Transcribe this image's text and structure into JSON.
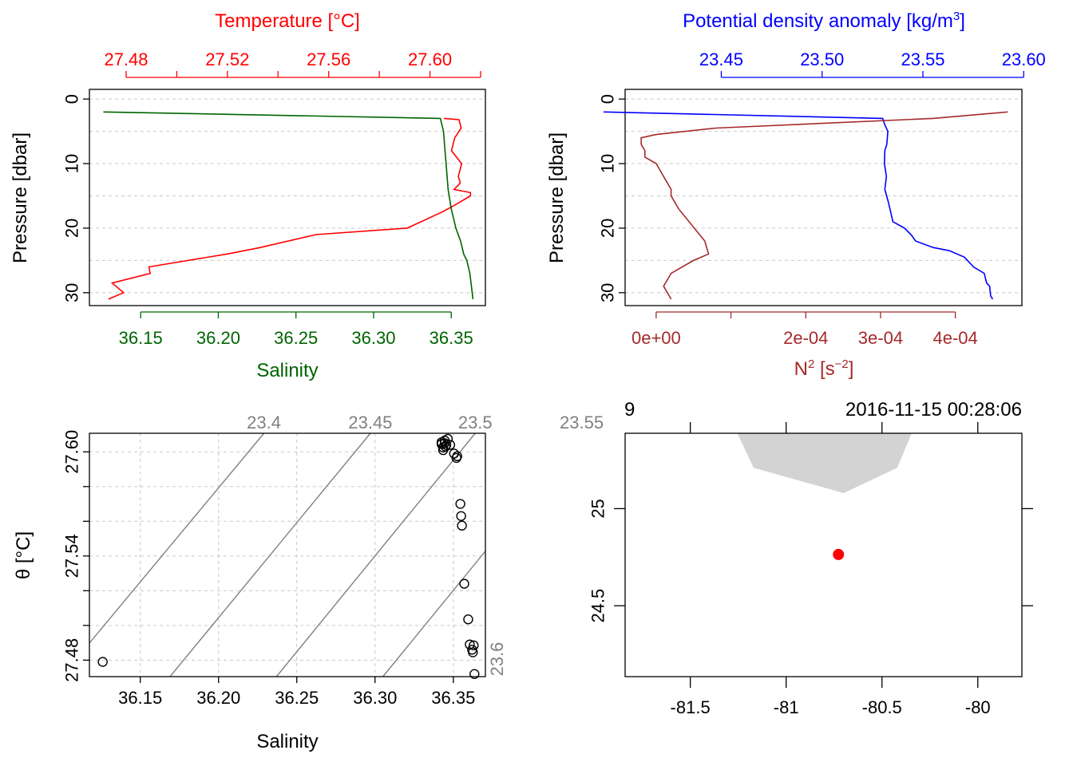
{
  "chart_data": [
    {
      "type": "line",
      "panel": "temperature-salinity-profile",
      "xlabel_bottom": "Salinity",
      "xlabel_top": "Temperature [°C]",
      "ylabel": "Pressure [dbar]",
      "colors": {
        "salinity": "#006400",
        "temperature": "#ff0000"
      },
      "ylim": [
        32,
        -1.5
      ],
      "y_ticks": [
        "0",
        "10",
        "20",
        "30"
      ],
      "y_tick_values": [
        0,
        10,
        20,
        30
      ],
      "x_bottom_ticks": [
        "36.15",
        "36.20",
        "36.25",
        "36.30",
        "36.35"
      ],
      "x_bottom_tick_values": [
        36.15,
        36.2,
        36.25,
        36.3,
        36.35
      ],
      "x_bottom_lim": [
        36.117,
        36.372
      ],
      "x_top_ticks": [
        "27.48",
        "27.52",
        "27.56",
        "27.60"
      ],
      "x_top_tick_values": [
        27.48,
        27.52,
        27.56,
        27.6
      ],
      "x_top_minor": [
        27.5,
        27.54,
        27.58,
        27.62
      ],
      "x_top_lim": [
        27.4655,
        27.6219
      ],
      "series": [
        {
          "name": "Temperature",
          "axis": "top",
          "x": [
            27.6055,
            27.6115,
            27.6123,
            27.6098,
            27.6085,
            27.6125,
            27.6112,
            27.612,
            27.6095,
            27.616,
            27.616,
            27.6095,
            27.6048,
            27.591,
            27.555,
            27.533,
            27.52,
            27.489,
            27.4895,
            27.4745,
            27.479,
            27.473
          ],
          "y": [
            3,
            3.2,
            4.5,
            6,
            8,
            10,
            12,
            13,
            14,
            14.5,
            15,
            16.5,
            17.5,
            20,
            21,
            23,
            24,
            26,
            27,
            28.5,
            30,
            31
          ]
        },
        {
          "name": "Salinity",
          "axis": "bottom",
          "x": [
            36.126,
            36.343,
            36.345,
            36.346,
            36.347,
            36.348,
            36.35,
            36.352,
            36.353,
            36.356,
            36.358,
            36.36,
            36.362,
            36.363,
            36.364
          ],
          "y": [
            2,
            3,
            5,
            8,
            11,
            14,
            17,
            19,
            20,
            22,
            24,
            25,
            27,
            29,
            31
          ]
        }
      ]
    },
    {
      "type": "line",
      "panel": "density-n2-profile",
      "xlabel_top": "Potential density anomaly [kg/m3]",
      "xlabel_bottom": "N2 [s-2]",
      "ylabel": "Pressure [dbar]",
      "colors": {
        "density": "#0000ff",
        "n2": "#a52a2a"
      },
      "ylim": [
        32,
        -1.5
      ],
      "y_ticks": [
        "0",
        "10",
        "20",
        "30"
      ],
      "y_tick_values": [
        0,
        10,
        20,
        30
      ],
      "x_top_ticks": [
        "23.45",
        "23.50",
        "23.55",
        "23.60"
      ],
      "x_top_tick_values": [
        23.45,
        23.5,
        23.55,
        23.6
      ],
      "x_top_lim": [
        23.4023,
        23.5991
      ],
      "x_bottom_ticks": [
        "0e+00",
        "2e-04",
        "3e-04",
        "4e-04"
      ],
      "x_bottom_tick_values": [
        0,
        0.0002,
        0.0003,
        0.0004
      ],
      "x_bottom_minor": [
        0.0001
      ],
      "x_bottom_lim": [
        -4.15e-05,
        0.000489
      ],
      "series": [
        {
          "name": "Potential density anomaly",
          "axis": "top",
          "x": [
            23.3916,
            23.5301,
            23.5311,
            23.5326,
            23.5321,
            23.5311,
            23.5309,
            23.5319,
            23.5311,
            23.5329,
            23.5351,
            23.5409,
            23.5441,
            23.5464,
            23.5551,
            23.5631,
            23.5706,
            23.5751,
            23.5804,
            23.5816,
            23.5831,
            23.5836,
            23.5846
          ],
          "y": [
            2,
            3,
            4,
            5,
            7,
            8,
            10,
            12,
            14,
            16,
            19,
            20,
            21,
            22,
            23,
            23.5,
            24.5,
            26,
            27,
            28.5,
            29,
            30.5,
            31
          ]
        },
        {
          "name": "N2",
          "axis": "bottom",
          "x": [
            0.00047,
            0.00037,
            8e-05,
            0.0,
            -2e-05,
            -2e-05,
            -1.5e-05,
            -1.5e-05,
            0.0,
            5e-06,
            1e-05,
            2e-05,
            2e-05,
            3e-05,
            6.5e-05,
            7e-05,
            5e-05,
            2e-05,
            1e-05,
            2e-05
          ],
          "y": [
            2,
            3,
            4.5,
            5.5,
            6,
            7,
            8,
            9,
            10,
            11,
            12,
            14,
            15,
            17,
            22,
            24,
            25,
            27,
            29,
            31
          ]
        }
      ]
    },
    {
      "type": "scatter",
      "panel": "theta-salinity",
      "xlabel": "Salinity",
      "ylabel": "θ [°C]",
      "xlim": [
        36.1175,
        36.3705
      ],
      "ylim": [
        27.4705,
        27.6107
      ],
      "x_ticks": [
        "36.15",
        "36.20",
        "36.25",
        "36.30",
        "36.35"
      ],
      "x_tick_values": [
        36.15,
        36.2,
        36.25,
        36.3,
        36.35
      ],
      "y_ticks": [
        "27.48",
        "27.54",
        "27.60"
      ],
      "y_tick_values": [
        27.48,
        27.54,
        27.6
      ],
      "y_minor": [
        27.5,
        27.52,
        27.56,
        27.58
      ],
      "isopycnal_labels": [
        "23.4",
        "23.45",
        "23.5",
        "23.55",
        "23.6"
      ],
      "isopycnal_values": [
        23.4,
        23.45,
        23.5,
        23.55,
        23.6
      ],
      "isopycnal_line_color": "#808080",
      "points": [
        [
          36.126,
          27.479
        ],
        [
          36.3425,
          27.6055
        ],
        [
          36.3425,
          27.6045
        ],
        [
          36.3435,
          27.6025
        ],
        [
          36.3435,
          27.601
        ],
        [
          36.3445,
          27.6065
        ],
        [
          36.3445,
          27.605
        ],
        [
          36.345,
          27.603
        ],
        [
          36.3455,
          27.604
        ],
        [
          36.3465,
          27.6075
        ],
        [
          36.348,
          27.604
        ],
        [
          36.3505,
          27.599
        ],
        [
          36.352,
          27.5965
        ],
        [
          36.3525,
          27.5975
        ],
        [
          36.3545,
          27.57
        ],
        [
          36.355,
          27.563
        ],
        [
          36.3555,
          27.5575
        ],
        [
          36.357,
          27.524
        ],
        [
          36.3595,
          27.5035
        ],
        [
          36.3605,
          27.489
        ],
        [
          36.362,
          27.486
        ],
        [
          36.363,
          27.4885
        ],
        [
          36.3625,
          27.4845
        ],
        [
          36.3635,
          27.472
        ]
      ]
    },
    {
      "type": "map",
      "panel": "station-map",
      "station_label": "9",
      "timestamp": "2016-11-15 00:28:06",
      "x_ticks": [
        "-81.5",
        "-81",
        "-80.5",
        "-80"
      ],
      "x_tick_values": [
        -81.5,
        -81.0,
        -80.5,
        -80.0
      ],
      "xlim": [
        -81.84,
        -79.77
      ],
      "y_ticks": [
        "24.5",
        "25"
      ],
      "y_tick_values": [
        24.5,
        25.0
      ],
      "ylim": [
        24.135,
        25.388
      ],
      "land_color": "#d3d3d3",
      "station_color": "#ff0000",
      "station": {
        "lon": -80.727,
        "lat": 24.764
      },
      "land_polygon": [
        [
          -81.26,
          25.45
        ],
        [
          -80.34,
          25.45
        ],
        [
          -80.34,
          25.4
        ],
        [
          -80.42,
          25.21
        ],
        [
          -80.7,
          25.08
        ],
        [
          -81.17,
          25.21
        ],
        [
          -81.26,
          25.4
        ]
      ]
    }
  ]
}
